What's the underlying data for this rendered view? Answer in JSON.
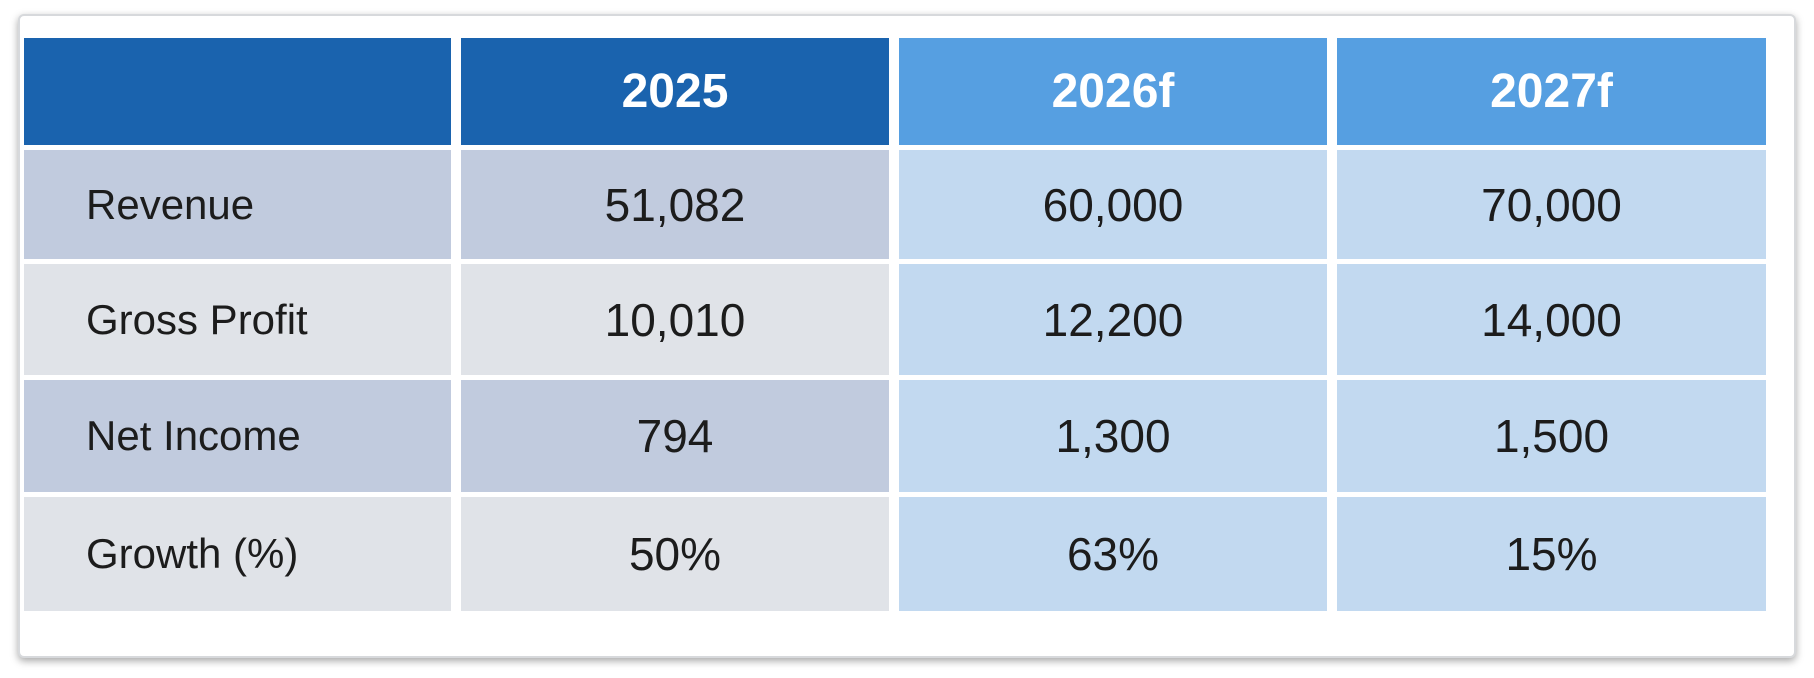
{
  "chart_data": {
    "type": "table",
    "columns": [
      "",
      "2025",
      "2026f",
      "2027f"
    ],
    "rows": [
      {
        "label": "Revenue",
        "values": [
          "51,082",
          "60,000",
          "70,000"
        ]
      },
      {
        "label": "Gross Profit",
        "values": [
          "10,010",
          "12,200",
          "14,000"
        ]
      },
      {
        "label": "Net Income",
        "values": [
          "794",
          "1,300",
          "1,500"
        ]
      },
      {
        "label": "Growth (%)",
        "values": [
          "50%",
          "63%",
          "15%"
        ]
      }
    ]
  },
  "colors": {
    "header_actual": "#1a63ae",
    "header_forecast": "#569fe1",
    "cell_actual_a": "#c1cbde",
    "cell_actual_b": "#e0e3e8",
    "cell_forecast": "#c2d9f0",
    "text": "#1c1c1c"
  }
}
